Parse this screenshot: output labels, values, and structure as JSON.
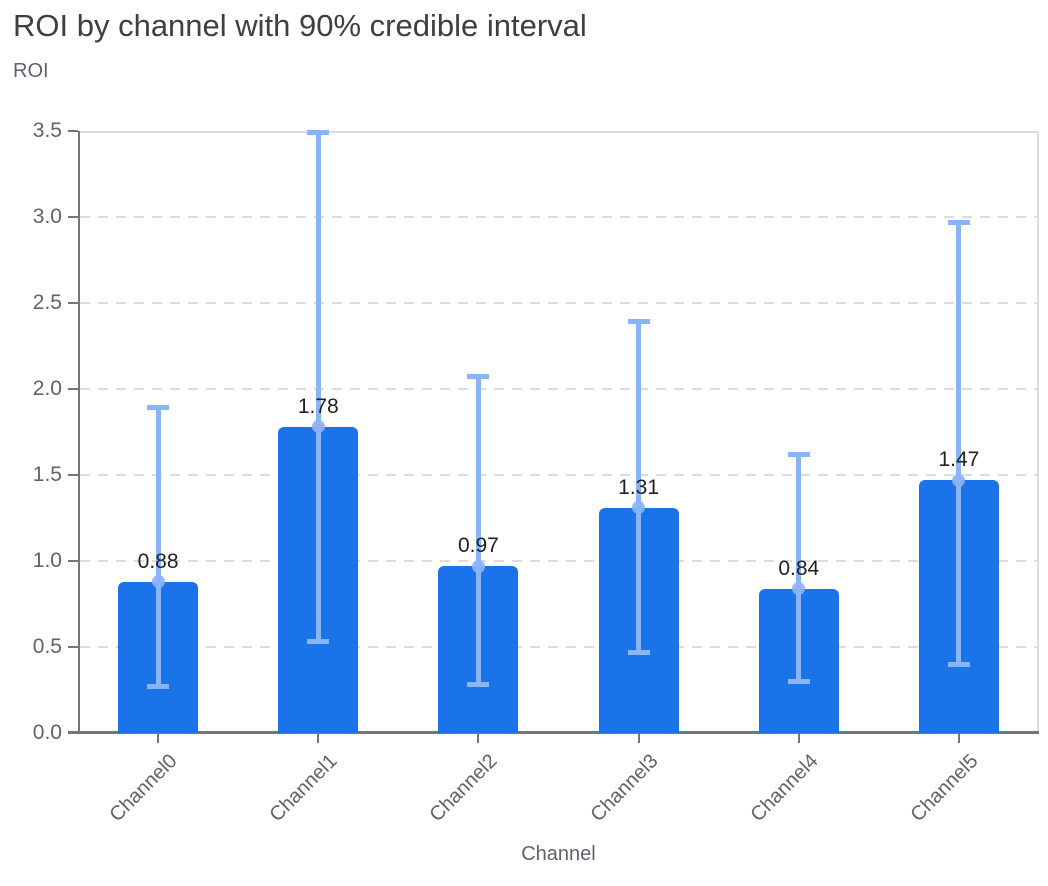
{
  "page": {
    "title": "ROI by channel with 90% credible interval"
  },
  "chart_data": {
    "type": "bar",
    "title": "ROI by channel with 90% credible interval",
    "xlabel": "Channel",
    "ylabel": "ROI",
    "categories": [
      "Channel0",
      "Channel1",
      "Channel2",
      "Channel3",
      "Channel4",
      "Channel5"
    ],
    "values": [
      0.88,
      1.78,
      0.97,
      1.31,
      0.84,
      1.47
    ],
    "value_labels": [
      "0.88",
      "1.78",
      "0.97",
      "1.31",
      "0.84",
      "1.47"
    ],
    "error_low": [
      0.27,
      0.53,
      0.28,
      0.47,
      0.3,
      0.4
    ],
    "error_high": [
      1.89,
      3.49,
      2.07,
      2.39,
      1.62,
      2.97
    ],
    "error_bar_meaning": "90% credible interval",
    "ylim": [
      0,
      3.5
    ],
    "ytick_labels": [
      "0.0",
      "0.5",
      "1.0",
      "1.5",
      "2.0",
      "2.5",
      "3.0",
      "3.5"
    ],
    "grid": "horizontal dashed",
    "legend_position": "none",
    "colors": {
      "bar": "#1A73E8",
      "error_bar": "#8AB4F8",
      "grid": "#DADCE0",
      "axis": "#757575",
      "axis_text": "#5F6368",
      "title_text": "#3C4043",
      "value_label_text": "#202124"
    }
  }
}
